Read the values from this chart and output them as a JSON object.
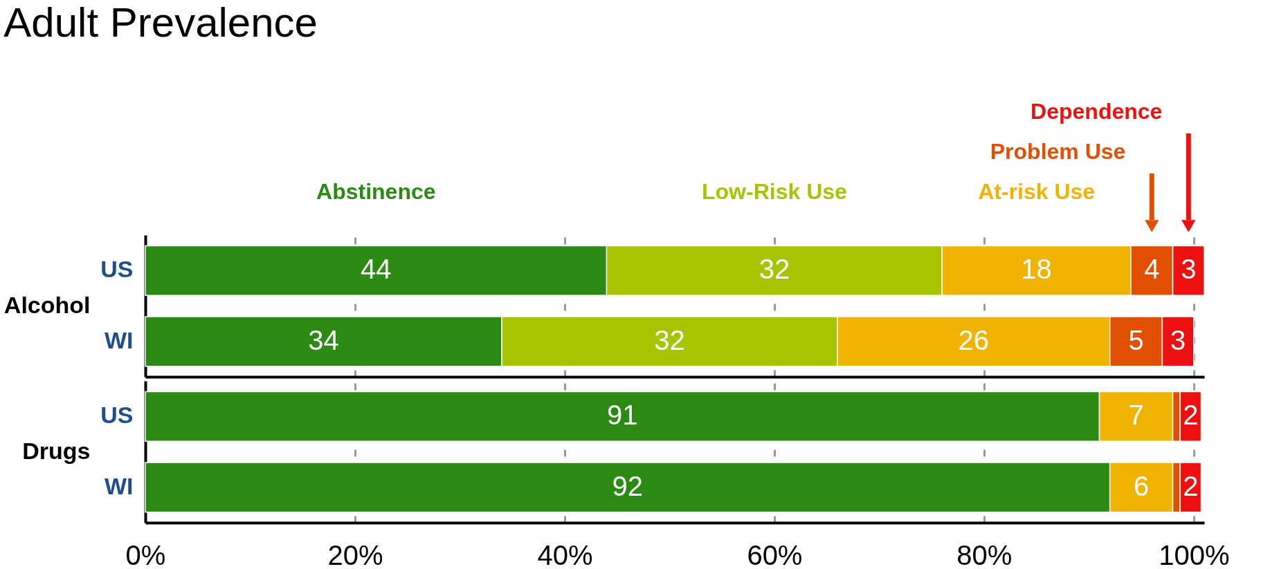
{
  "chart_data": [
    {
      "type": "bar",
      "title": "Adult Prevalence",
      "ylabel": "Alcohol",
      "orientation": "horizontal",
      "stacked": true,
      "categories": [
        "US",
        "WI"
      ],
      "series": [
        {
          "name": "Abstinence",
          "color": "#2a8a12",
          "values": [
            44,
            34
          ],
          "value_labels": [
            "44",
            "34"
          ]
        },
        {
          "name": "Low-Risk Use",
          "color": "#a6c400",
          "values": [
            32,
            32
          ],
          "value_labels": [
            "32",
            "32"
          ]
        },
        {
          "name": "At-risk Use",
          "color": "#f0b400",
          "values": [
            18,
            26
          ],
          "value_labels": [
            "18",
            "26"
          ]
        },
        {
          "name": "Problem Use",
          "color": "#e05000",
          "values": [
            4,
            5
          ],
          "value_labels": [
            "4",
            "5"
          ]
        },
        {
          "name": "Dependence",
          "color": "#ec1010",
          "values": [
            3,
            3
          ],
          "value_labels": [
            "3",
            "3"
          ]
        }
      ],
      "xlim": [
        0,
        101
      ],
      "xticks": [
        {
          "value": 0,
          "label": null
        },
        {
          "value": 20,
          "label": null
        },
        {
          "value": 40,
          "label": null
        },
        {
          "value": 60,
          "label": null
        },
        {
          "value": 80,
          "label": null
        },
        {
          "value": 100,
          "label": null
        }
      ],
      "tick_labels": "y",
      "grid": "x",
      "legend": "top"
    },
    {
      "type": "bar",
      "ylabel": "Drugs",
      "orientation": "horizontal",
      "stacked": true,
      "categories": [
        "US",
        "WI"
      ],
      "series": [
        {
          "color": "#2a8a12",
          "values": [
            91,
            92
          ],
          "value_labels": [
            "91",
            "92"
          ]
        },
        {
          "color": "#f0b400",
          "values": [
            7,
            6
          ],
          "value_labels": [
            "7",
            "6"
          ]
        },
        {
          "color": "#e05000",
          "values": [
            0.7,
            0.7
          ],
          "value_labels": [
            null,
            null
          ]
        },
        {
          "color": "#ec1010",
          "values": [
            2,
            2
          ],
          "value_labels": [
            "2",
            "2"
          ]
        }
      ],
      "xlim": [
        0,
        101
      ],
      "xticks": [
        {
          "value": 0,
          "label": "0%"
        },
        {
          "value": 20,
          "label": "20%"
        },
        {
          "value": 40,
          "label": "40%"
        },
        {
          "value": 60,
          "label": "60%"
        },
        {
          "value": 80,
          "label": "80%"
        },
        {
          "value": 100,
          "label": "100%"
        }
      ],
      "grid": "x",
      "legend": false
    }
  ]
}
